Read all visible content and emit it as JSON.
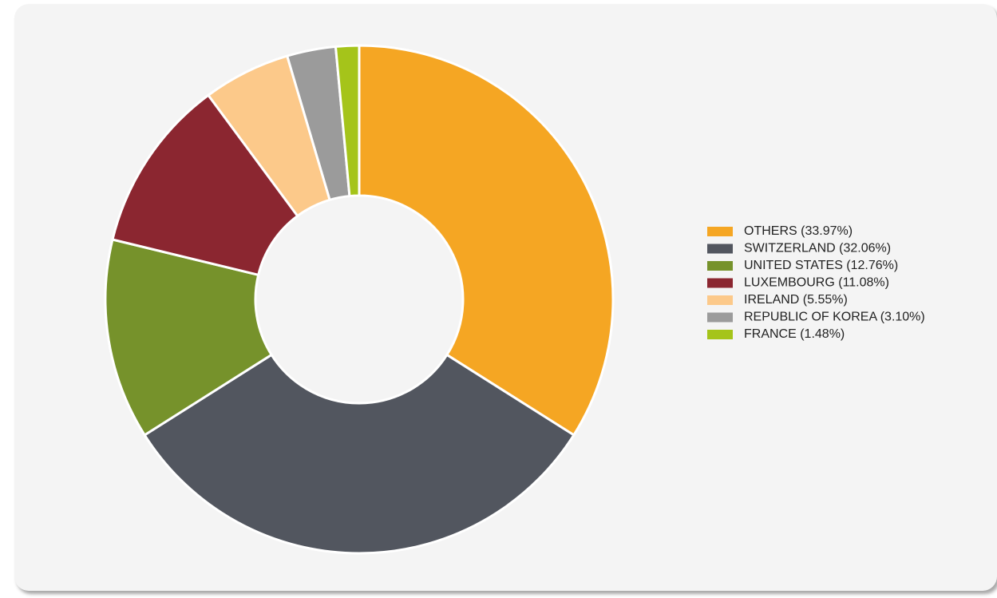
{
  "chart_data": {
    "type": "donut",
    "categories": [
      "OTHERS (33.97%)",
      "SWITZERLAND (32.06%)",
      "UNITED STATES (12.76%)",
      "LUXEMBOURG (11.08%)",
      "IRELAND (5.55%)",
      "REPUBLIC OF KOREA (3.10%)",
      "FRANCE (1.48%)"
    ],
    "values": [
      33.97,
      32.06,
      12.76,
      11.08,
      5.55,
      3.1,
      1.48
    ],
    "colors": [
      "#f5a623",
      "#52565f",
      "#76922b",
      "#8b2630",
      "#fcc98a",
      "#9b9b9b",
      "#a5c41a"
    ],
    "legend": "right"
  }
}
